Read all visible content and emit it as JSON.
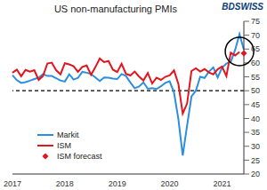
{
  "chart_data": {
    "type": "line",
    "title": "US non-manufacturing PMIs",
    "logo": "BDSWISS",
    "categories": [
      "2017",
      null,
      null,
      null,
      null,
      null,
      null,
      null,
      null,
      null,
      null,
      null,
      "2018",
      null,
      null,
      null,
      null,
      null,
      null,
      null,
      null,
      null,
      null,
      null,
      "2019",
      null,
      null,
      null,
      null,
      null,
      null,
      null,
      null,
      null,
      null,
      null,
      "2020",
      null,
      null,
      null,
      null,
      null,
      null,
      null,
      null,
      null,
      null,
      null,
      "2021",
      null,
      null,
      null,
      null,
      null
    ],
    "series": [
      {
        "name": "Markit",
        "color": "#2b8ede",
        "type": "line",
        "values": [
          55.6,
          53.8,
          52.8,
          53.1,
          53.6,
          54.2,
          54.7,
          56.0,
          55.3,
          55.3,
          54.5,
          53.7,
          53.3,
          55.9,
          54.0,
          54.6,
          56.8,
          56.5,
          56.0,
          54.8,
          53.5,
          54.8,
          54.7,
          54.4,
          54.2,
          56.0,
          55.3,
          53.0,
          50.9,
          51.5,
          53.0,
          50.7,
          50.9,
          50.6,
          51.6,
          52.8,
          53.4,
          49.4,
          39.8,
          26.7,
          37.5,
          47.9,
          50.0,
          55.0,
          54.6,
          56.9,
          58.4,
          54.8,
          58.3,
          59.8,
          60.4,
          64.7,
          70.4,
          64.8
        ]
      },
      {
        "name": "ISM",
        "color": "#e3141c",
        "type": "line",
        "values": [
          56.5,
          57.6,
          55.2,
          57.5,
          56.9,
          57.4,
          53.9,
          55.3,
          59.8,
          60.1,
          57.4,
          55.9,
          59.9,
          59.5,
          58.8,
          56.8,
          58.6,
          59.1,
          55.7,
          58.5,
          61.6,
          60.3,
          60.7,
          57.6,
          56.7,
          59.7,
          56.1,
          55.5,
          56.9,
          55.1,
          53.7,
          56.4,
          52.6,
          54.7,
          53.9,
          55.0,
          55.5,
          57.3,
          52.5,
          41.8,
          45.4,
          57.1,
          58.1,
          56.9,
          57.8,
          56.6,
          55.9,
          57.7,
          58.7,
          55.3,
          63.7,
          62.7,
          64.0,
          null
        ]
      },
      {
        "name": "ISM forecast",
        "color": "#e3141c",
        "type": "scatter",
        "marker": "diamond",
        "values": [
          null,
          null,
          null,
          null,
          null,
          null,
          null,
          null,
          null,
          null,
          null,
          null,
          null,
          null,
          null,
          null,
          null,
          null,
          null,
          null,
          null,
          null,
          null,
          null,
          null,
          null,
          null,
          null,
          null,
          null,
          null,
          null,
          null,
          null,
          null,
          null,
          null,
          null,
          null,
          null,
          null,
          null,
          null,
          null,
          null,
          null,
          null,
          null,
          null,
          null,
          null,
          null,
          null,
          63.5
        ]
      }
    ],
    "ylim": [
      20,
      75
    ],
    "yticks": [
      20,
      25,
      30,
      35,
      40,
      45,
      50,
      55,
      60,
      65,
      70,
      75
    ],
    "threshold": 50,
    "grid": false,
    "legend": "lower left"
  }
}
